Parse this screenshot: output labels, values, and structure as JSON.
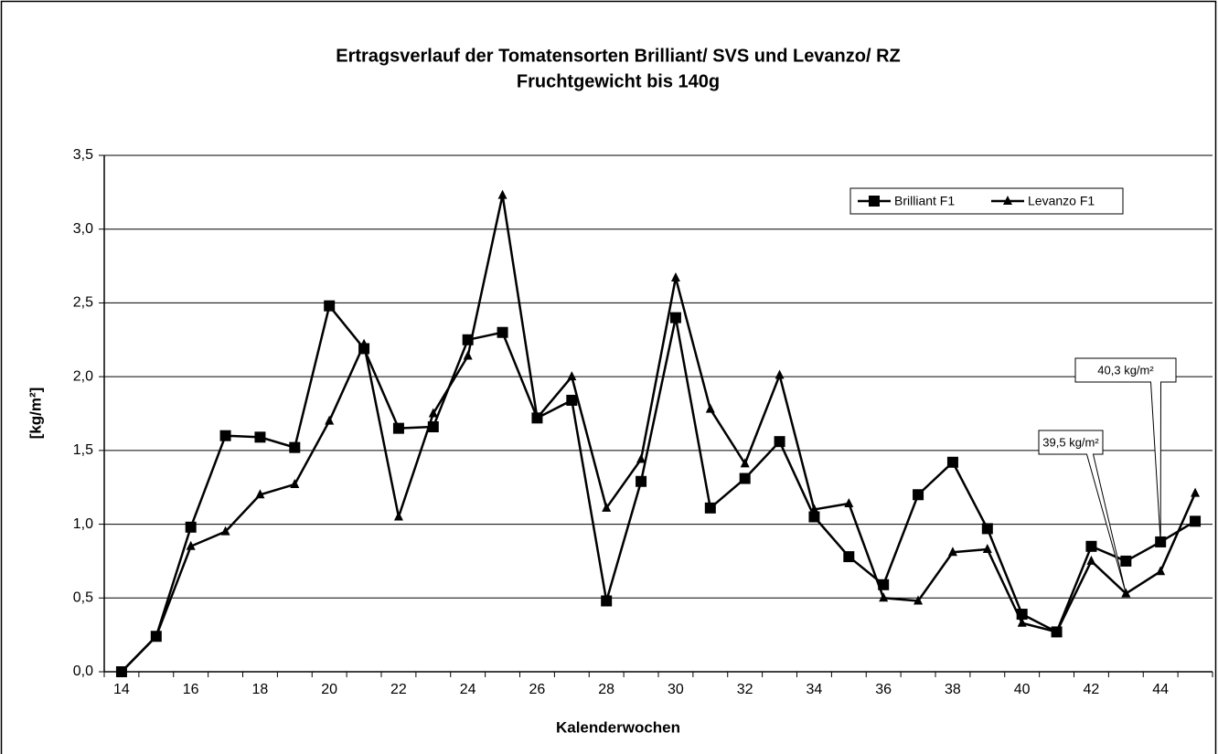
{
  "chart_data": {
    "type": "line",
    "title": "Ertragsverlauf der Tomatensorten Brilliant/ SVS und Levanzo/ RZ",
    "subtitle": "Fruchtgewicht bis 140g",
    "x_label": "Kalenderwochen",
    "y_label": "[kg/m²]",
    "categories": [
      "14",
      null,
      "16",
      null,
      "18",
      null,
      "20",
      null,
      "22",
      null,
      "24",
      null,
      "26",
      null,
      "28",
      null,
      "30",
      null,
      "32",
      null,
      "34",
      null,
      "36",
      null,
      "38",
      null,
      "40",
      null,
      "42",
      null,
      "44",
      null
    ],
    "series": [
      {
        "name": "Brilliant F1",
        "color": "#000000",
        "marker": "square",
        "values": [
          0,
          0.24,
          0.98,
          1.6,
          1.59,
          1.52,
          2.48,
          2.19,
          1.65,
          1.66,
          2.25,
          2.3,
          1.72,
          1.84,
          0.48,
          1.29,
          2.4,
          1.11,
          1.31,
          1.56,
          1.05,
          0.78,
          0.59,
          1.2,
          1.42,
          0.97,
          0.39,
          0.27,
          0.85,
          0.75,
          0.88,
          1.02
        ]
      },
      {
        "name": "Levanzo F1",
        "color": "#000000",
        "marker": "triangle",
        "values": [
          0,
          0.24,
          0.85,
          0.95,
          1.2,
          1.27,
          1.7,
          2.22,
          1.05,
          1.75,
          2.14,
          3.23,
          1.72,
          2.0,
          1.11,
          1.44,
          2.67,
          1.78,
          1.41,
          2.01,
          1.1,
          1.14,
          0.5,
          0.48,
          0.81,
          0.83,
          0.33,
          0.27,
          0.75,
          0.53,
          0.68,
          1.21
        ]
      }
    ],
    "ylim": [
      0,
      3.5
    ],
    "yticks": [
      {
        "value": 0,
        "label": "0,0"
      },
      {
        "value": 0.5,
        "label": "0,5"
      },
      {
        "value": 1,
        "label": "1,0"
      },
      {
        "value": 1.5,
        "label": "1,5"
      },
      {
        "value": 2,
        "label": "2,0"
      },
      {
        "value": 2.5,
        "label": "2,5"
      },
      {
        "value": 3,
        "label": "3,0"
      },
      {
        "value": 3.5,
        "label": "3,5"
      }
    ],
    "grid": true,
    "legend": "top-right",
    "annotations": [
      "39,5 kg/m²",
      "40,3 kg/m²"
    ]
  }
}
